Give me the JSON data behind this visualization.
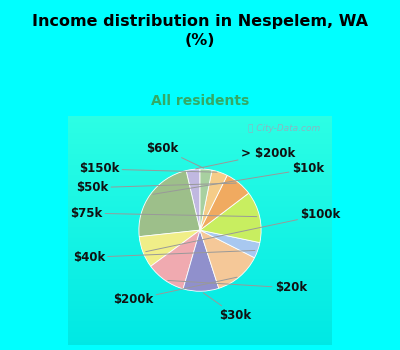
{
  "title": "Income distribution in Nespelem, WA\n(%)",
  "subtitle": "All residents",
  "title_color": "#000000",
  "subtitle_color": "#33aa66",
  "bg_color": "#00ffff",
  "chart_bg_top": "#cceedd",
  "chart_bg_bot": "#ddf5ee",
  "labels": [
    "> $200k",
    "$10k",
    "$100k",
    "$20k",
    "$30k",
    "$200k",
    "$40k",
    "$75k",
    "$50k",
    "$150k",
    "$60k"
  ],
  "values": [
    3.5,
    22,
    8,
    10,
    9,
    12,
    4,
    13,
    7,
    4,
    3
  ],
  "colors": [
    "#c0b8e0",
    "#9dbf8a",
    "#f0ee88",
    "#f0aab0",
    "#9090cc",
    "#f5c898",
    "#a8c8f0",
    "#c8ee60",
    "#f0aa60",
    "#f5cc88",
    "#a8d0a0"
  ],
  "label_offsets": {
    "> $200k": [
      0.48,
      0.9,
      "left"
    ],
    "$10k": [
      1.08,
      0.72,
      "left"
    ],
    "$100k": [
      1.18,
      0.18,
      "left"
    ],
    "$20k": [
      0.88,
      -0.68,
      "left"
    ],
    "$30k": [
      0.22,
      -1.0,
      "left"
    ],
    "$200k": [
      -0.55,
      -0.82,
      "right"
    ],
    "$40k": [
      -1.12,
      -0.32,
      "right"
    ],
    "$75k": [
      -1.15,
      0.2,
      "right"
    ],
    "$50k": [
      -1.08,
      0.5,
      "right"
    ],
    "$150k": [
      -0.95,
      0.72,
      "right"
    ],
    "$60k": [
      -0.25,
      0.96,
      "right"
    ]
  },
  "label_fontsize": 8.5,
  "title_fontsize": 11.5,
  "subtitle_fontsize": 10
}
